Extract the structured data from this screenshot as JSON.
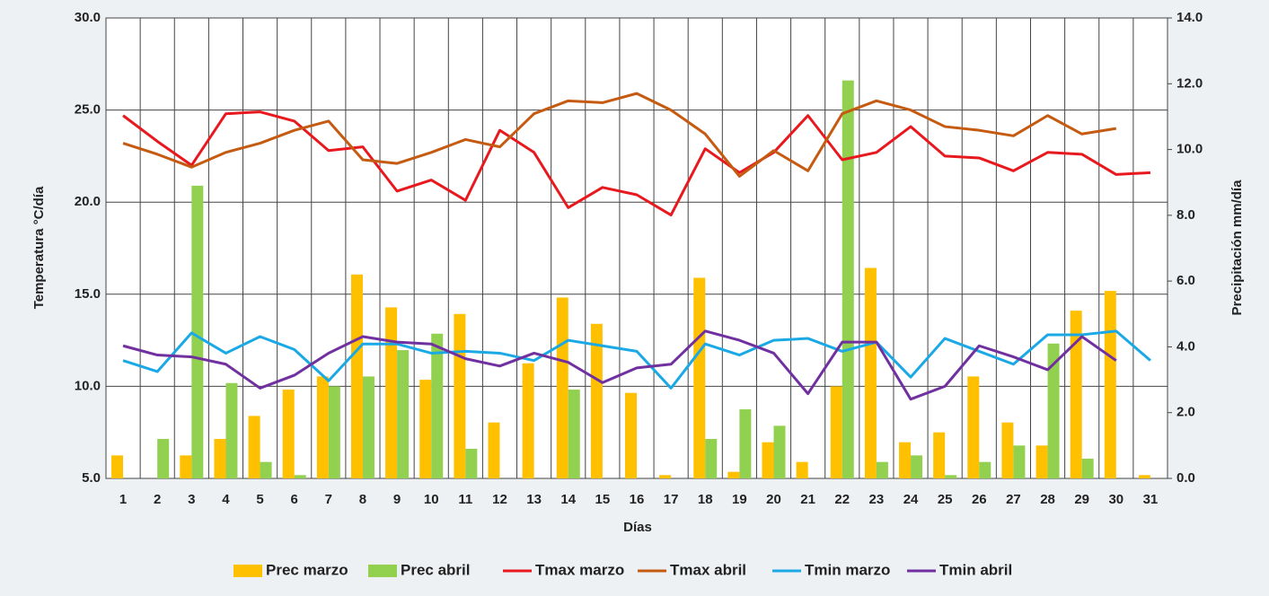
{
  "chart_data": {
    "type": "combo",
    "xlabel": "Días",
    "ylabel": "Temperatura °C/día",
    "y2label": "Precipitación mm/día",
    "categories": [
      "1",
      "2",
      "3",
      "4",
      "5",
      "6",
      "7",
      "8",
      "9",
      "10",
      "11",
      "12",
      "13",
      "14",
      "15",
      "16",
      "17",
      "18",
      "19",
      "20",
      "21",
      "22",
      "23",
      "24",
      "25",
      "26",
      "27",
      "28",
      "29",
      "30",
      "31"
    ],
    "ylim": [
      5,
      30
    ],
    "yticks": [
      {
        "value": 5,
        "label": "5.0"
      },
      {
        "value": 10,
        "label": "10.0"
      },
      {
        "value": 15,
        "label": "15.0"
      },
      {
        "value": 20,
        "label": "20.0"
      },
      {
        "value": 25,
        "label": "25.0"
      },
      {
        "value": 30,
        "label": "30.0"
      }
    ],
    "y2lim": [
      0,
      14
    ],
    "y2ticks": [
      {
        "value": 0,
        "label": "0.0"
      },
      {
        "value": 2,
        "label": "2.0"
      },
      {
        "value": 4,
        "label": "4.0"
      },
      {
        "value": 6,
        "label": "6.0"
      },
      {
        "value": 8,
        "label": "8.0"
      },
      {
        "value": 10,
        "label": "10.0"
      },
      {
        "value": 12,
        "label": "12.0"
      },
      {
        "value": 14,
        "label": "14.0"
      }
    ],
    "grid": true,
    "legend": "bottom",
    "series": [
      {
        "name": "Prec marzo",
        "type": "bar",
        "axis": "y2",
        "color": "#FFC000",
        "values": [
          0.7,
          0,
          0.7,
          1.2,
          1.9,
          2.7,
          3.1,
          6.2,
          5.2,
          3.0,
          5.0,
          1.7,
          3.5,
          5.5,
          4.7,
          2.6,
          0.1,
          6.1,
          0.2,
          1.1,
          0.5,
          2.8,
          6.4,
          1.1,
          1.4,
          3.1,
          1.7,
          1.0,
          5.1,
          5.7,
          0.1
        ]
      },
      {
        "name": "Prec abril",
        "type": "bar",
        "axis": "y2",
        "color": "#92D050",
        "values": [
          0,
          1.2,
          8.9,
          2.9,
          0.5,
          0.1,
          2.8,
          3.1,
          3.9,
          4.4,
          0.9,
          0,
          0,
          2.7,
          0,
          0,
          0,
          1.2,
          2.1,
          1.6,
          0,
          12.1,
          0.5,
          0.7,
          0.1,
          0.5,
          1.0,
          4.1,
          0.6,
          0,
          0
        ]
      },
      {
        "name": "Tmax marzo",
        "type": "line",
        "color": "#E8191E",
        "values": [
          24.7,
          23.3,
          22.0,
          24.8,
          24.9,
          24.4,
          22.8,
          23.0,
          20.6,
          21.2,
          20.1,
          23.9,
          22.7,
          19.7,
          20.8,
          20.4,
          19.3,
          22.9,
          21.6,
          22.7,
          24.7,
          22.3,
          22.7,
          24.1,
          22.5,
          22.4,
          21.7,
          22.7,
          22.6,
          21.5,
          21.6
        ]
      },
      {
        "name": "Tmax abril",
        "type": "line",
        "color": "#C55A11",
        "values": [
          23.2,
          22.6,
          21.9,
          22.7,
          23.2,
          23.9,
          24.4,
          22.3,
          22.1,
          22.7,
          23.4,
          23.0,
          24.8,
          25.5,
          25.4,
          25.9,
          25.0,
          23.7,
          21.4,
          22.8,
          21.7,
          24.8,
          25.5,
          25.0,
          24.1,
          23.9,
          23.6,
          24.7,
          23.7,
          24.0,
          null
        ]
      },
      {
        "name": "Tmin marzo",
        "type": "line",
        "color": "#1BA9E6",
        "values": [
          11.4,
          10.8,
          12.9,
          11.8,
          12.7,
          12.0,
          10.3,
          12.3,
          12.3,
          11.8,
          11.9,
          11.8,
          11.4,
          12.5,
          12.2,
          11.9,
          9.9,
          12.3,
          11.7,
          12.5,
          12.6,
          11.9,
          12.4,
          10.5,
          12.6,
          11.9,
          11.2,
          12.8,
          12.8,
          13.0,
          11.4
        ]
      },
      {
        "name": "Tmin abril",
        "type": "line",
        "color": "#7030A0",
        "values": [
          12.2,
          11.7,
          11.6,
          11.2,
          9.9,
          10.6,
          11.8,
          12.7,
          12.4,
          12.3,
          11.5,
          11.1,
          11.8,
          11.3,
          10.2,
          11.0,
          11.2,
          13.0,
          12.5,
          11.8,
          9.6,
          12.4,
          12.4,
          9.3,
          10.0,
          12.2,
          11.6,
          10.9,
          12.7,
          11.4,
          null
        ]
      }
    ]
  }
}
